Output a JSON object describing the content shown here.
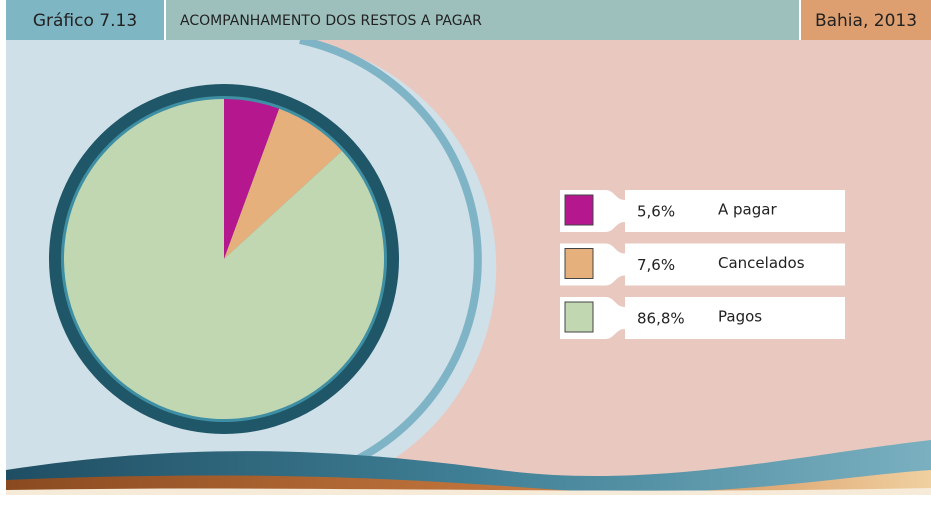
{
  "chart_data": {
    "type": "pie",
    "label": "Gráfico 7.13",
    "title": "ACOMPANHAMENTO DOS RESTOS A PAGAR",
    "subtitle": "Bahia, 2013",
    "categories": [
      "A pagar",
      "Cancelados",
      "Pagos"
    ],
    "values": [
      5.6,
      7.6,
      86.8
    ],
    "value_labels": [
      "5,6%",
      "7,6%",
      "86,8%"
    ],
    "colors": [
      "#b5178f",
      "#e6b07c",
      "#c1d7b1"
    ]
  }
}
